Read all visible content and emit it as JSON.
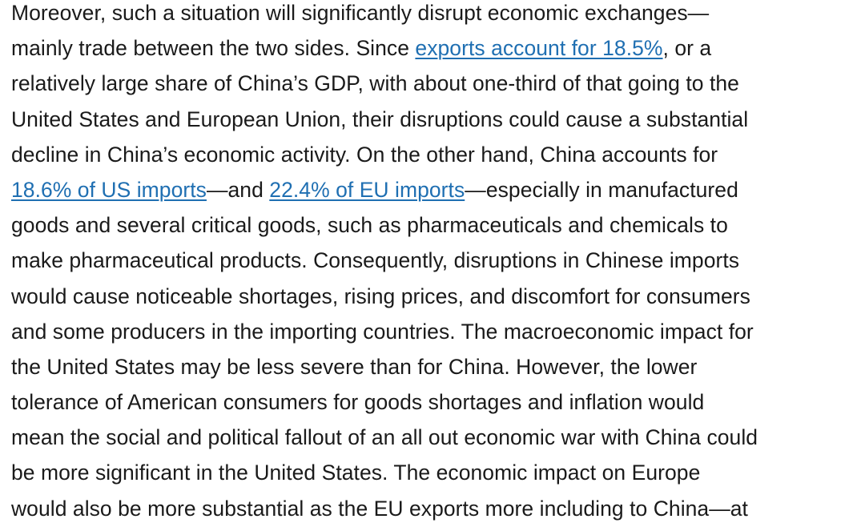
{
  "paragraph": {
    "lines": [
      [
        "Moreover, such a situation will significantly disrupt economic exchanges—"
      ],
      [
        "mainly trade between the two sides. Since ",
        "exports account for 18.5%",
        ", or a"
      ],
      [
        "relatively large share of China’s GDP, with about one-third of that going to the"
      ],
      [
        "United States and European Union, their disruptions could cause a substantial"
      ],
      [
        "decline in China’s economic activity. On the other hand, China accounts for"
      ],
      [
        "18.6% of US imports",
        "—and ",
        "22.4% of EU imports",
        "—especially in manufactured"
      ],
      [
        "goods and several critical goods, such as pharmaceuticals and chemicals to"
      ],
      [
        "make pharmaceutical products. Consequently, disruptions in Chinese imports"
      ],
      [
        "would cause noticeable shortages, rising prices, and discomfort for consumers"
      ],
      [
        "and some producers in the importing countries. The macroeconomic impact for"
      ],
      [
        "the United States may be less severe than for China. However, the lower"
      ],
      [
        "tolerance of American consumers for goods shortages and inflation would"
      ],
      [
        "mean the social and political fallout of an all out economic war with China could"
      ],
      [
        "be more significant in the United States. The economic impact on Europe"
      ],
      [
        "would also be more substantial as the EU exports more including to China—at"
      ]
    ]
  },
  "colors": {
    "text": "#1a1a1a",
    "link": "#1f6fb2",
    "background": "#ffffff"
  }
}
